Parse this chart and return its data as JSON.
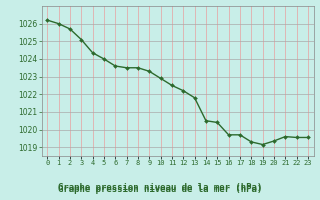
{
  "x": [
    0,
    1,
    2,
    3,
    4,
    5,
    6,
    7,
    8,
    9,
    10,
    11,
    12,
    13,
    14,
    15,
    16,
    17,
    18,
    19,
    20,
    21,
    22,
    23
  ],
  "y": [
    1026.2,
    1026.0,
    1025.7,
    1025.1,
    1024.35,
    1024.0,
    1023.6,
    1023.5,
    1023.5,
    1023.3,
    1022.9,
    1022.5,
    1022.2,
    1021.8,
    1020.5,
    1020.4,
    1019.7,
    1019.7,
    1019.3,
    1019.15,
    1019.35,
    1019.6,
    1019.55,
    1019.55
  ],
  "line_color": "#2d6a2d",
  "marker_color": "#2d6a2d",
  "bg_color": "#c8eee8",
  "plot_bg_color": "#c8eee8",
  "grid_color_v": "#e8a0a0",
  "grid_color_h": "#aaaaaa",
  "xlabel": "Graphe pression niveau de la mer (hPa)",
  "tick_color": "#2d6a2d",
  "ylim": [
    1018.5,
    1027.0
  ],
  "xlim": [
    -0.5,
    23.5
  ],
  "yticks": [
    1019,
    1020,
    1021,
    1022,
    1023,
    1024,
    1025,
    1026
  ],
  "xtick_labels": [
    "0",
    "1",
    "2",
    "3",
    "4",
    "5",
    "6",
    "7",
    "8",
    "9",
    "10",
    "11",
    "12",
    "13",
    "14",
    "15",
    "16",
    "17",
    "18",
    "19",
    "20",
    "21",
    "22",
    "23"
  ],
  "xlabel_text_color": "#2d6a2d",
  "bottom_bg": "#ffffff"
}
